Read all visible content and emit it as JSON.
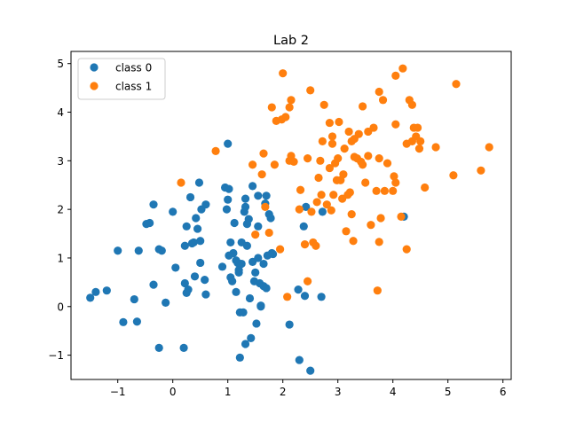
{
  "chart_data": {
    "type": "scatter",
    "title": "Lab 2",
    "xlabel": "",
    "ylabel": "",
    "xlim": [
      -1.85,
      6.15
    ],
    "ylim": [
      -1.5,
      5.25
    ],
    "xticks": [
      -1,
      0,
      1,
      2,
      3,
      4,
      5,
      6
    ],
    "yticks": [
      -1,
      0,
      1,
      2,
      3,
      4,
      5
    ],
    "xtick_labels": [
      "−1",
      "0",
      "1",
      "2",
      "3",
      "4",
      "5",
      "6"
    ],
    "ytick_labels": [
      "−1",
      "0",
      "1",
      "2",
      "3",
      "4",
      "5"
    ],
    "grid": false,
    "legend_position": "upper left",
    "series": [
      {
        "name": "class 0",
        "color": "#1f77b4",
        "points": [
          [
            -1.5,
            0.18
          ],
          [
            -1.4,
            0.3
          ],
          [
            -1.2,
            0.33
          ],
          [
            -1.0,
            1.15
          ],
          [
            -0.9,
            -0.32
          ],
          [
            -0.7,
            0.15
          ],
          [
            -0.65,
            -0.31
          ],
          [
            -0.62,
            1.15
          ],
          [
            -0.48,
            1.7
          ],
          [
            -0.42,
            1.72
          ],
          [
            -0.35,
            2.1
          ],
          [
            -0.35,
            0.45
          ],
          [
            -0.25,
            -0.85
          ],
          [
            -0.25,
            1.18
          ],
          [
            -0.2,
            1.15
          ],
          [
            -0.13,
            0.08
          ],
          [
            0.0,
            1.95
          ],
          [
            0.05,
            0.8
          ],
          [
            0.2,
            -0.85
          ],
          [
            0.22,
            0.48
          ],
          [
            0.22,
            1.25
          ],
          [
            0.25,
            1.65
          ],
          [
            0.25,
            0.28
          ],
          [
            0.28,
            0.35
          ],
          [
            0.32,
            2.25
          ],
          [
            0.35,
            1.3
          ],
          [
            0.38,
            1.32
          ],
          [
            0.4,
            0.62
          ],
          [
            0.42,
            1.82
          ],
          [
            0.45,
            1.6
          ],
          [
            0.48,
            2.55
          ],
          [
            0.5,
            1.35
          ],
          [
            0.5,
            0.9
          ],
          [
            0.52,
            2.0
          ],
          [
            0.58,
            0.55
          ],
          [
            0.6,
            0.25
          ],
          [
            0.6,
            2.1
          ],
          [
            0.9,
            0.82
          ],
          [
            0.95,
            2.45
          ],
          [
            0.98,
            2.0
          ],
          [
            1.0,
            2.2
          ],
          [
            1.0,
            3.35
          ],
          [
            1.02,
            2.42
          ],
          [
            1.02,
            1.05
          ],
          [
            1.05,
            0.6
          ],
          [
            1.05,
            1.32
          ],
          [
            1.08,
            0.52
          ],
          [
            1.1,
            1.1
          ],
          [
            1.12,
            1.72
          ],
          [
            1.15,
            0.95
          ],
          [
            1.15,
            0.3
          ],
          [
            1.18,
            0.9
          ],
          [
            1.2,
            0.75
          ],
          [
            1.2,
            0.7
          ],
          [
            1.22,
            -0.12
          ],
          [
            1.22,
            -1.05
          ],
          [
            1.25,
            1.32
          ],
          [
            1.25,
            0.88
          ],
          [
            1.28,
            -0.12
          ],
          [
            1.3,
            1.95
          ],
          [
            1.32,
            2.22
          ],
          [
            1.32,
            2.05
          ],
          [
            1.32,
            -0.77
          ],
          [
            1.35,
            1.7
          ],
          [
            1.35,
            1.25
          ],
          [
            1.38,
            1.8
          ],
          [
            1.4,
            0.17
          ],
          [
            1.42,
            -0.65
          ],
          [
            1.45,
            0.92
          ],
          [
            1.45,
            2.48
          ],
          [
            1.48,
            0.52
          ],
          [
            1.5,
            0.7
          ],
          [
            1.52,
            -0.35
          ],
          [
            1.55,
            2.28
          ],
          [
            1.55,
            1.65
          ],
          [
            1.55,
            1.0
          ],
          [
            1.58,
            0.48
          ],
          [
            1.6,
            0.02
          ],
          [
            1.6,
            0.0
          ],
          [
            1.65,
            0.88
          ],
          [
            1.65,
            0.42
          ],
          [
            1.68,
            2.12
          ],
          [
            1.7,
            2.28
          ],
          [
            1.7,
            0.38
          ],
          [
            1.72,
            1.05
          ],
          [
            1.75,
            1.9
          ],
          [
            1.78,
            1.82
          ],
          [
            1.8,
            1.1
          ],
          [
            1.82,
            1.08
          ],
          [
            2.12,
            -0.37
          ],
          [
            2.28,
            0.35
          ],
          [
            2.3,
            -1.1
          ],
          [
            2.38,
            1.65
          ],
          [
            2.4,
            0.22
          ],
          [
            2.42,
            2.05
          ],
          [
            2.5,
            -1.32
          ],
          [
            2.7,
            0.2
          ],
          [
            2.72,
            1.95
          ],
          [
            4.2,
            1.85
          ]
        ]
      },
      {
        "name": "class 1",
        "color": "#ff7f0e",
        "points": [
          [
            0.15,
            2.55
          ],
          [
            0.78,
            3.2
          ],
          [
            1.45,
            2.92
          ],
          [
            1.5,
            1.48
          ],
          [
            1.62,
            2.72
          ],
          [
            1.65,
            3.15
          ],
          [
            1.68,
            2.05
          ],
          [
            1.75,
            1.52
          ],
          [
            1.8,
            4.1
          ],
          [
            1.85,
            2.92
          ],
          [
            1.88,
            3.82
          ],
          [
            1.95,
            1.18
          ],
          [
            1.98,
            3.85
          ],
          [
            2.0,
            4.8
          ],
          [
            2.05,
            3.9
          ],
          [
            2.08,
            0.2
          ],
          [
            2.12,
            3.0
          ],
          [
            2.12,
            4.1
          ],
          [
            2.15,
            3.1
          ],
          [
            2.15,
            4.25
          ],
          [
            2.2,
            2.98
          ],
          [
            2.3,
            2.0
          ],
          [
            2.32,
            2.4
          ],
          [
            2.4,
            1.28
          ],
          [
            2.45,
            3.05
          ],
          [
            2.45,
            0.52
          ],
          [
            2.5,
            4.45
          ],
          [
            2.52,
            1.95
          ],
          [
            2.55,
            1.32
          ],
          [
            2.6,
            1.25
          ],
          [
            2.62,
            2.15
          ],
          [
            2.65,
            2.65
          ],
          [
            2.68,
            3.0
          ],
          [
            2.7,
            2.3
          ],
          [
            2.72,
            3.4
          ],
          [
            2.75,
            4.15
          ],
          [
            2.8,
            2.1
          ],
          [
            2.85,
            2.85
          ],
          [
            2.85,
            3.78
          ],
          [
            2.88,
            1.98
          ],
          [
            2.9,
            3.35
          ],
          [
            2.9,
            3.5
          ],
          [
            2.92,
            2.3
          ],
          [
            2.95,
            2.95
          ],
          [
            2.98,
            2.6
          ],
          [
            3.0,
            3.05
          ],
          [
            3.02,
            3.8
          ],
          [
            3.05,
            2.6
          ],
          [
            3.08,
            2.22
          ],
          [
            3.1,
            2.72
          ],
          [
            3.12,
            3.25
          ],
          [
            3.15,
            1.55
          ],
          [
            3.18,
            2.3
          ],
          [
            3.2,
            3.6
          ],
          [
            3.22,
            2.35
          ],
          [
            3.25,
            1.9
          ],
          [
            3.25,
            3.4
          ],
          [
            3.28,
            1.35
          ],
          [
            3.3,
            3.08
          ],
          [
            3.3,
            3.45
          ],
          [
            3.35,
            3.05
          ],
          [
            3.38,
            3.55
          ],
          [
            3.42,
            2.98
          ],
          [
            3.45,
            2.92
          ],
          [
            3.45,
            4.12
          ],
          [
            3.5,
            2.55
          ],
          [
            3.55,
            3.6
          ],
          [
            3.55,
            3.1
          ],
          [
            3.6,
            1.68
          ],
          [
            3.65,
            3.68
          ],
          [
            3.7,
            2.38
          ],
          [
            3.72,
            0.33
          ],
          [
            3.75,
            1.33
          ],
          [
            3.75,
            3.05
          ],
          [
            3.75,
            4.42
          ],
          [
            3.78,
            1.82
          ],
          [
            3.82,
            4.25
          ],
          [
            3.85,
            2.38
          ],
          [
            3.9,
            2.95
          ],
          [
            4.0,
            2.38
          ],
          [
            4.02,
            2.68
          ],
          [
            4.05,
            2.55
          ],
          [
            4.05,
            3.75
          ],
          [
            4.05,
            4.75
          ],
          [
            4.15,
            1.85
          ],
          [
            4.18,
            4.9
          ],
          [
            4.25,
            3.35
          ],
          [
            4.25,
            1.18
          ],
          [
            4.3,
            4.25
          ],
          [
            4.35,
            4.15
          ],
          [
            4.35,
            3.4
          ],
          [
            4.38,
            3.68
          ],
          [
            4.42,
            3.5
          ],
          [
            4.45,
            3.68
          ],
          [
            4.48,
            3.25
          ],
          [
            4.5,
            3.4
          ],
          [
            4.58,
            2.45
          ],
          [
            4.78,
            3.28
          ],
          [
            5.1,
            2.7
          ],
          [
            5.15,
            4.58
          ],
          [
            5.6,
            2.8
          ],
          [
            5.75,
            3.28
          ]
        ]
      }
    ]
  }
}
